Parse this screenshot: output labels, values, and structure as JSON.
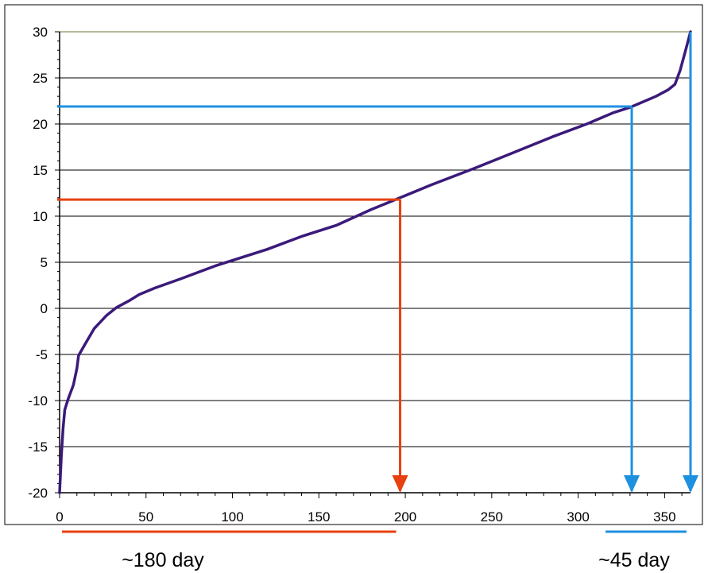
{
  "chart_data": {
    "type": "line",
    "title": "",
    "xlabel": "",
    "ylabel": "",
    "xlim": [
      0,
      365
    ],
    "ylim": [
      -20,
      30
    ],
    "x_ticks": [
      0,
      50,
      100,
      150,
      200,
      250,
      300,
      350
    ],
    "y_ticks": [
      -20,
      -15,
      -10,
      -5,
      0,
      5,
      10,
      15,
      20,
      25,
      30
    ],
    "grid": "horizontal",
    "legend": "none",
    "series": [
      {
        "color": "#3b1a7a",
        "points": [
          [
            0,
            -20
          ],
          [
            1,
            -16
          ],
          [
            2,
            -13
          ],
          [
            3,
            -11
          ],
          [
            5,
            -9.8
          ],
          [
            8,
            -8.3
          ],
          [
            10,
            -6.5
          ],
          [
            11,
            -5.1
          ],
          [
            15,
            -3.8
          ],
          [
            20,
            -2.2
          ],
          [
            27,
            -0.8
          ],
          [
            33,
            0.1
          ],
          [
            40,
            0.8
          ],
          [
            46,
            1.5
          ],
          [
            55,
            2.2
          ],
          [
            70,
            3.2
          ],
          [
            90,
            4.6
          ],
          [
            120,
            6.4
          ],
          [
            140,
            7.8
          ],
          [
            160,
            9.0
          ],
          [
            180,
            10.7
          ],
          [
            197,
            12.0
          ],
          [
            215,
            13.4
          ],
          [
            240,
            15.2
          ],
          [
            260,
            16.7
          ],
          [
            285,
            18.6
          ],
          [
            305,
            20.0
          ],
          [
            320,
            21.2
          ],
          [
            330,
            21.8
          ],
          [
            345,
            23.0
          ],
          [
            352,
            23.7
          ],
          [
            356,
            24.3
          ],
          [
            359,
            25.8
          ],
          [
            362,
            27.9
          ],
          [
            365,
            30
          ]
        ]
      }
    ],
    "annotations": [
      {
        "color": "#e84010",
        "level_y": 11.8,
        "cross_x": 197,
        "bracket": [
          0,
          197
        ],
        "label": "~180 day"
      },
      {
        "color": "#1e90e0",
        "level_y": 21.9,
        "cross_x": 331,
        "bracket": [
          331,
          365
        ],
        "label": "~45 day"
      }
    ],
    "top_line": {
      "y": 30,
      "color": "#6b7a3a"
    }
  }
}
